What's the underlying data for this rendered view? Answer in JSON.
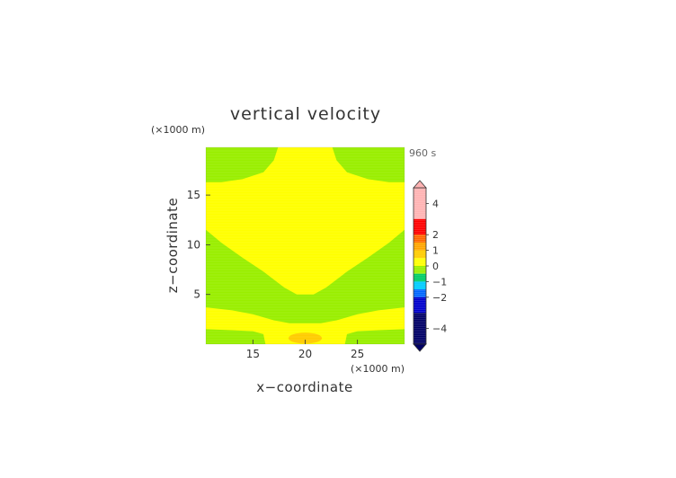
{
  "chart_data": {
    "type": "heatmap",
    "title": "vertical velocity",
    "time_label": "960 s",
    "xlabel": "x−coordinate",
    "ylabel": "z−coordinate",
    "x_unit": "(×1000 m)",
    "y_unit": "(×1000 m)",
    "xlim": [
      10.5,
      29.5
    ],
    "ylim": [
      0,
      19.8
    ],
    "x_ticks": [
      15,
      20,
      25
    ],
    "y_ticks": [
      5,
      10,
      15
    ],
    "x_tick_labels": [
      "15",
      "20",
      "25"
    ],
    "y_tick_labels": [
      "5",
      "10",
      "15"
    ],
    "grid": false,
    "colorbar": {
      "labels": [
        "4",
        "2",
        "1",
        "0",
        "−1",
        "−2",
        "−4"
      ],
      "label_values": [
        4,
        2,
        1,
        0,
        -1,
        -2,
        -4
      ],
      "extend": "both",
      "levels": [
        {
          "from": 3.0,
          "to": 5.0,
          "color": "#ffb3b3"
        },
        {
          "from": 2.0,
          "to": 3.0,
          "color": "#ff0000"
        },
        {
          "from": 1.5,
          "to": 2.0,
          "color": "#ff6600"
        },
        {
          "from": 1.0,
          "to": 1.5,
          "color": "#ffa500"
        },
        {
          "from": 0.5,
          "to": 1.0,
          "color": "#ffcc00"
        },
        {
          "from": 0.0,
          "to": 0.5,
          "color": "#ffff00"
        },
        {
          "from": -0.5,
          "to": 0.0,
          "color": "#99ee00"
        },
        {
          "from": -1.0,
          "to": -0.5,
          "color": "#00cc66"
        },
        {
          "from": -1.5,
          "to": -1.0,
          "color": "#00ccff"
        },
        {
          "from": -2.0,
          "to": -1.5,
          "color": "#0066ff"
        },
        {
          "from": -3.0,
          "to": -2.0,
          "color": "#0000cc"
        },
        {
          "from": -5.0,
          "to": -3.0,
          "color": "#000066"
        }
      ]
    },
    "regions": [
      {
        "name": "background",
        "color": "#99ee00",
        "level": "-0.5 to 0"
      },
      {
        "name": "upper-positive-region",
        "color": "#ffff00",
        "level": "0 to 0.5",
        "outline": [
          [
            10.5,
            16.3
          ],
          [
            12,
            16.3
          ],
          [
            14,
            16.6
          ],
          [
            16,
            17.3
          ],
          [
            17,
            18.5
          ],
          [
            17.4,
            19.8
          ],
          [
            22.6,
            19.8
          ],
          [
            23,
            18.5
          ],
          [
            24,
            17.3
          ],
          [
            26,
            16.6
          ],
          [
            28,
            16.3
          ],
          [
            29.5,
            16.3
          ],
          [
            29.5,
            11.5
          ],
          [
            28,
            10.2
          ],
          [
            26,
            8.7
          ],
          [
            24,
            7.3
          ],
          [
            22,
            5.7
          ],
          [
            20.8,
            5.0
          ],
          [
            19.2,
            5.0
          ],
          [
            18,
            5.7
          ],
          [
            16,
            7.3
          ],
          [
            14,
            8.7
          ],
          [
            12,
            10.2
          ],
          [
            10.5,
            11.5
          ]
        ]
      },
      {
        "name": "lower-positive-band",
        "color": "#ffff00",
        "level": "0 to 0.5",
        "outline": [
          [
            10.5,
            3.7
          ],
          [
            13,
            3.4
          ],
          [
            15,
            3.0
          ],
          [
            17,
            2.4
          ],
          [
            18.5,
            2.1
          ],
          [
            21.5,
            2.1
          ],
          [
            23,
            2.4
          ],
          [
            25,
            3.0
          ],
          [
            27,
            3.4
          ],
          [
            29.5,
            3.7
          ],
          [
            29.5,
            1.5
          ],
          [
            27,
            1.4
          ],
          [
            25,
            1.3
          ],
          [
            24,
            1.0
          ],
          [
            23.8,
            0
          ],
          [
            16.2,
            0
          ],
          [
            16,
            1.0
          ],
          [
            15,
            1.3
          ],
          [
            13,
            1.4
          ],
          [
            10.5,
            1.5
          ]
        ]
      },
      {
        "name": "surface-maximum",
        "color": "#ffcc00",
        "level": "0.5 to 1",
        "center": [
          20,
          0.6
        ],
        "radius": [
          1.6,
          0.55
        ]
      }
    ]
  }
}
